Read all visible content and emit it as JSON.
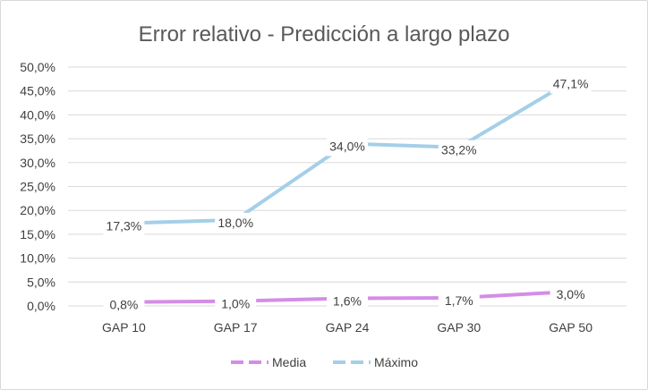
{
  "chart_data": {
    "type": "line",
    "title": "Error relativo - Predicción a largo plazo",
    "categories": [
      "GAP 10",
      "GAP 17",
      "GAP 24",
      "GAP 30",
      "GAP 50"
    ],
    "y_ticks": [
      "0,0%",
      "5,0%",
      "10,0%",
      "15,0%",
      "20,0%",
      "25,0%",
      "30,0%",
      "35,0%",
      "40,0%",
      "45,0%",
      "50,0%"
    ],
    "ylim": [
      0,
      50
    ],
    "grid": true,
    "legend_position": "bottom",
    "series": [
      {
        "name": "Media",
        "values": [
          0.8,
          1.0,
          1.6,
          1.7,
          3.0
        ],
        "labels": [
          "0,8%",
          "1,0%",
          "1,6%",
          "1,7%",
          "3,0%"
        ],
        "color": "#d48de6"
      },
      {
        "name": "Máximo",
        "values": [
          17.3,
          18.0,
          34.0,
          33.2,
          47.1
        ],
        "labels": [
          "17,3%",
          "18,0%",
          "34,0%",
          "33,2%",
          "47,1%"
        ],
        "color": "#a4cfe8"
      }
    ]
  }
}
